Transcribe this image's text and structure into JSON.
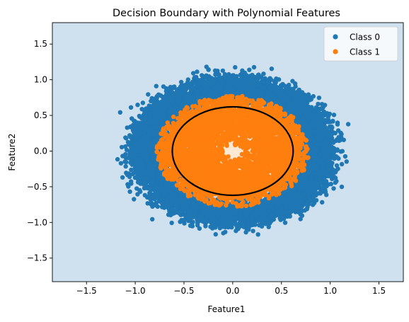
{
  "chart_data": {
    "type": "scatter",
    "title": "Decision Boundary with Polynomial Features",
    "xlabel": "Feature1",
    "ylabel": "Feature2",
    "xlim": [
      -1.85,
      1.75
    ],
    "ylim": [
      -1.83,
      1.8
    ],
    "xticks": [
      -1.5,
      -1.0,
      -0.5,
      0.0,
      0.5,
      1.0,
      1.5
    ],
    "yticks": [
      -1.5,
      -1.0,
      -0.5,
      0.0,
      0.5,
      1.0,
      1.5
    ],
    "grid": false,
    "legend_position": "top-right",
    "series": [
      {
        "name": "Class 0",
        "color": "#1f77b4",
        "shape": "ring",
        "center": [
          0.0,
          0.0
        ],
        "radius_range": [
          0.6,
          1.2
        ],
        "point_count": 6000
      },
      {
        "name": "Class 1",
        "color": "#ff7f0e",
        "shape": "disk",
        "center": [
          0.0,
          0.0
        ],
        "radius_range": [
          0.08,
          0.78
        ],
        "point_count": 4200
      }
    ],
    "decision_regions": [
      {
        "class": "Class 0",
        "color": "#cfe1ef"
      },
      {
        "class": "Class 1",
        "color": "#fde8d6"
      }
    ],
    "decision_boundary": {
      "shape": "circle",
      "center": [
        0.0,
        0.0
      ],
      "radius": 0.62,
      "color": "#000000"
    }
  }
}
